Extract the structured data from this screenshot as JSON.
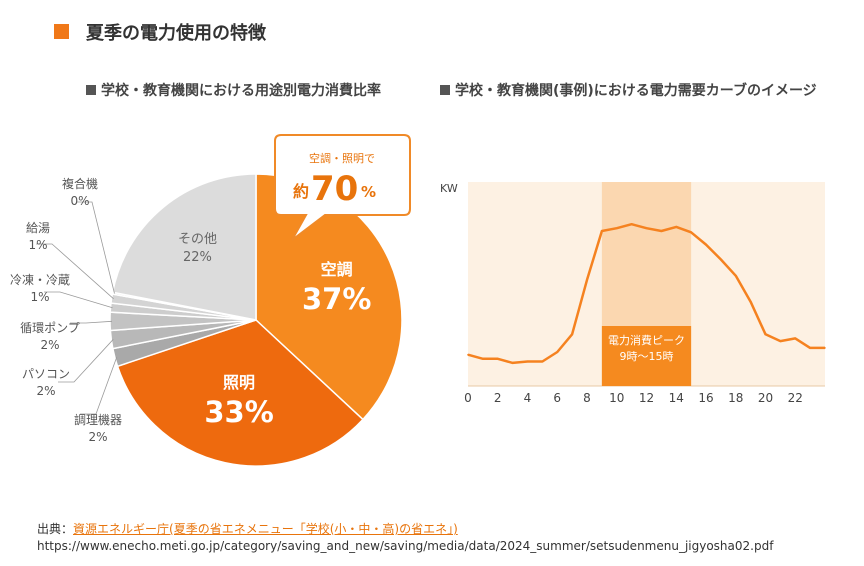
{
  "page": {
    "title": "夏季の電力使用の特徴"
  },
  "left_chart_title": "学校・教育機関における用途別電力消費比率",
  "right_chart_title": "学校・教育機関(事例)における電力需要カーブのイメージ",
  "callout": {
    "line1": "空調・照明で",
    "prefix": "約",
    "value": "70",
    "unit": "%"
  },
  "source": {
    "prefix": "出典：",
    "link_text": "資源エネルギー庁(夏季の省エネメニュー「学校(小・中・高)の省エネ」)",
    "url": "https://www.enecho.meti.go.jp/category/saving_and_new/saving/media/data/2024_summer/setsudenmenu_jigyosha02.pdf"
  },
  "colors": {
    "accent": "#f07818",
    "highlight_band": "#fbd7b0",
    "plot_bg": "#fdf1e3"
  },
  "chart_data": [
    {
      "type": "pie",
      "title": "学校・教育機関における用途別電力消費比率",
      "unit": "%",
      "slices": [
        {
          "label": "空調",
          "value": 37,
          "display": "37%",
          "color": "#f58a1f",
          "label_inside": true
        },
        {
          "label": "照明",
          "value": 33,
          "display": "33%",
          "color": "#ee6a0e",
          "label_inside": true
        },
        {
          "label": "調理機器",
          "value": 2,
          "display": "2%",
          "color": "#a9a9a9",
          "label_inside": false
        },
        {
          "label": "パソコン",
          "value": 2,
          "display": "2%",
          "color": "#b8b8b8",
          "label_inside": false
        },
        {
          "label": "循環ポンプ",
          "value": 2,
          "display": "2%",
          "color": "#c3c3c3",
          "label_inside": false
        },
        {
          "label": "冷凍・冷蔵",
          "value": 1,
          "display": "1%",
          "color": "#cdcdcd",
          "label_inside": false
        },
        {
          "label": "給湯",
          "value": 1,
          "display": "1%",
          "color": "#d4d4d4",
          "label_inside": false
        },
        {
          "label": "複合機",
          "value": 0,
          "display": "0%",
          "color": "#dadada",
          "label_inside": false
        },
        {
          "label": "その他",
          "value": 22,
          "display": "22%",
          "color": "#dcdcdc",
          "label_inside": true
        }
      ]
    },
    {
      "type": "line",
      "title": "学校・教育機関(事例)における電力需要カーブのイメージ",
      "ylabel": "KW",
      "xlim": [
        0,
        24
      ],
      "xticks": [
        0,
        2,
        4,
        6,
        8,
        10,
        12,
        14,
        16,
        18,
        20,
        22
      ],
      "highlight": {
        "from": 9,
        "to": 15,
        "label1": "電力消費ピーク",
        "label2": "9時～15時"
      },
      "x": [
        0,
        1,
        2,
        3,
        4,
        5,
        6,
        7,
        8,
        9,
        10,
        11,
        12,
        13,
        14,
        15,
        16,
        17,
        18,
        19,
        20,
        21,
        22,
        23,
        24
      ],
      "values": [
        2.3,
        2.0,
        2.0,
        1.7,
        1.8,
        1.8,
        2.5,
        3.8,
        7.8,
        11.4,
        11.6,
        11.9,
        11.6,
        11.4,
        11.7,
        11.3,
        10.4,
        9.3,
        8.1,
        6.2,
        3.8,
        3.3,
        3.5,
        2.8,
        2.8
      ],
      "ylim": [
        0,
        15
      ]
    }
  ]
}
